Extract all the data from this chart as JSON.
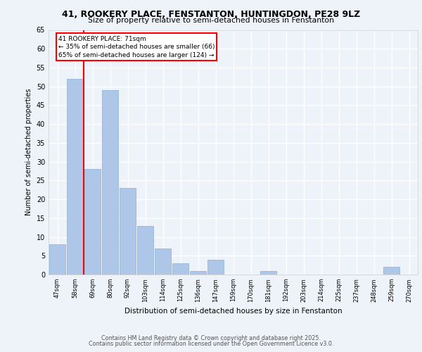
{
  "title1": "41, ROOKERY PLACE, FENSTANTON, HUNTINGDON, PE28 9LZ",
  "title2": "Size of property relative to semi-detached houses in Fenstanton",
  "xlabel": "Distribution of semi-detached houses by size in Fenstanton",
  "ylabel": "Number of semi-detached properties",
  "categories": [
    "47sqm",
    "58sqm",
    "69sqm",
    "80sqm",
    "92sqm",
    "103sqm",
    "114sqm",
    "125sqm",
    "136sqm",
    "147sqm",
    "159sqm",
    "170sqm",
    "181sqm",
    "192sqm",
    "203sqm",
    "214sqm",
    "225sqm",
    "237sqm",
    "248sqm",
    "259sqm",
    "270sqm"
  ],
  "values": [
    8,
    52,
    28,
    49,
    23,
    13,
    7,
    3,
    1,
    4,
    0,
    0,
    1,
    0,
    0,
    0,
    0,
    0,
    0,
    2,
    0
  ],
  "bar_color": "#aec6e8",
  "bar_edge_color": "#8ab0d0",
  "annotation_title": "41 ROOKERY PLACE: 71sqm",
  "annotation_line1": "← 35% of semi-detached houses are smaller (66)",
  "annotation_line2": "65% of semi-detached houses are larger (124) →",
  "ylim": [
    0,
    65
  ],
  "yticks": [
    0,
    5,
    10,
    15,
    20,
    25,
    30,
    35,
    40,
    45,
    50,
    55,
    60,
    65
  ],
  "footer1": "Contains HM Land Registry data © Crown copyright and database right 2025.",
  "footer2": "Contains public sector information licensed under the Open Government Licence v3.0.",
  "bg_color": "#eef2f9",
  "grid_color": "#ffffff",
  "red_line_x": 1.5
}
